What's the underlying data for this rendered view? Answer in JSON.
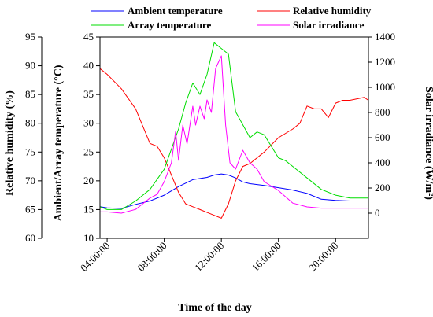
{
  "chart_data": {
    "type": "line",
    "xlabel": "Time of the day",
    "x_ticks": [
      "04:00:00",
      "08:00:00",
      "12:00:00",
      "16:00:00",
      "20:00:00"
    ],
    "xlim": [
      3.5,
      22.3
    ],
    "left_outer_axis": {
      "label": "Relative humidity (%)",
      "range": [
        60,
        95
      ],
      "ticks": [
        60,
        65,
        70,
        75,
        80,
        85,
        90,
        95
      ]
    },
    "left_inner_axis": {
      "label": "Ambient/Array temperature (°C)",
      "range": [
        10,
        45
      ],
      "ticks": [
        10,
        15,
        20,
        25,
        30,
        35,
        40,
        45
      ]
    },
    "right_axis": {
      "label": "Solar irradiance (W/m²)",
      "range": [
        -200,
        1400
      ],
      "ticks": [
        0,
        200,
        400,
        600,
        800,
        1000,
        1200,
        1400
      ]
    },
    "series": [
      {
        "name": "Ambient temperature",
        "color": "#0000ff",
        "axis": "left_inner",
        "x": [
          3.5,
          4.0,
          5.0,
          6.0,
          7.0,
          8.0,
          9.0,
          10.0,
          11.0,
          11.5,
          12.0,
          12.5,
          13.0,
          13.5,
          14.0,
          15.0,
          16.0,
          17.0,
          18.0,
          19.0,
          20.0,
          21.0,
          22.3
        ],
        "y": [
          15.5,
          15.3,
          15.2,
          15.9,
          16.5,
          17.5,
          19.0,
          20.2,
          20.6,
          21.0,
          21.2,
          21.0,
          20.5,
          19.8,
          19.5,
          19.2,
          18.8,
          18.4,
          17.8,
          16.8,
          16.6,
          16.5,
          16.5
        ]
      },
      {
        "name": "Relative humidity",
        "color": "#ff0000",
        "axis": "left_outer",
        "x": [
          3.5,
          4.0,
          5.0,
          6.0,
          7.0,
          7.5,
          8.0,
          9.0,
          9.5,
          10.0,
          10.5,
          11.0,
          11.5,
          12.0,
          12.5,
          13.0,
          13.5,
          14.0,
          15.0,
          16.0,
          17.0,
          17.5,
          18.0,
          18.5,
          19.0,
          19.5,
          20.0,
          20.5,
          21.0,
          22.0,
          22.3
        ],
        "y": [
          89.5,
          88.5,
          86.0,
          82.5,
          76.5,
          76.0,
          74.0,
          68.0,
          66.0,
          65.5,
          65.0,
          64.5,
          64.0,
          63.5,
          66.0,
          70.0,
          72.5,
          73.0,
          75.0,
          77.5,
          79.0,
          80.0,
          83.0,
          82.5,
          82.5,
          81.0,
          83.5,
          84.0,
          84.0,
          84.5,
          84.0
        ]
      },
      {
        "name": "Array temperature",
        "color": "#00dd00",
        "axis": "left_inner",
        "x": [
          3.5,
          4.0,
          5.0,
          6.0,
          7.0,
          8.0,
          9.0,
          9.5,
          10.0,
          10.5,
          11.0,
          11.5,
          12.0,
          12.5,
          13.0,
          14.0,
          14.5,
          15.0,
          16.0,
          16.5,
          17.0,
          18.0,
          19.0,
          20.0,
          21.0,
          22.3
        ],
        "y": [
          15.5,
          15.0,
          15.0,
          16.5,
          18.5,
          22.0,
          29.0,
          33.5,
          37.0,
          35.0,
          38.5,
          44.0,
          43.0,
          42.0,
          32.0,
          27.5,
          28.5,
          28.0,
          24.0,
          23.5,
          22.5,
          20.5,
          18.5,
          17.5,
          17.0,
          17.0
        ]
      },
      {
        "name": "Solar irradiance",
        "color": "#ff00ff",
        "axis": "right",
        "x": [
          3.5,
          4.0,
          5.0,
          6.0,
          7.0,
          7.5,
          8.0,
          8.5,
          8.8,
          9.0,
          9.3,
          9.6,
          10.0,
          10.2,
          10.5,
          10.8,
          11.0,
          11.3,
          11.6,
          12.0,
          12.3,
          12.6,
          13.0,
          13.5,
          14.0,
          14.5,
          15.0,
          16.0,
          17.0,
          18.0,
          19.0,
          20.0,
          21.0,
          22.3
        ],
        "y": [
          10,
          10,
          0,
          30,
          120,
          150,
          250,
          400,
          650,
          420,
          700,
          550,
          850,
          700,
          850,
          750,
          900,
          800,
          1150,
          1250,
          700,
          400,
          350,
          500,
          400,
          350,
          250,
          180,
          80,
          50,
          40,
          40,
          40,
          40
        ]
      }
    ]
  }
}
